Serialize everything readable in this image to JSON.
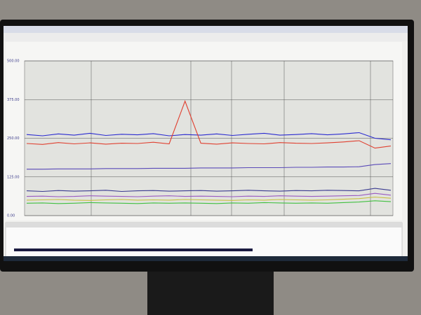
{
  "chart_data": {
    "type": "line",
    "categories": [
      null,
      null,
      null,
      null,
      null,
      null,
      null,
      null,
      null,
      null,
      null,
      null,
      null,
      null,
      null,
      null,
      null,
      null,
      null,
      null,
      null,
      null,
      null,
      null
    ],
    "series": [
      {
        "color": "#2a2ad0",
        "values": [
          262,
          258,
          264,
          260,
          266,
          259,
          263,
          261,
          265,
          258,
          262,
          260,
          264,
          259,
          263,
          266,
          260,
          262,
          265,
          261,
          264,
          268,
          250,
          245
        ]
      },
      {
        "color": "#e04030",
        "values": [
          233,
          230,
          236,
          232,
          235,
          231,
          234,
          233,
          237,
          232,
          370,
          234,
          231,
          235,
          233,
          232,
          236,
          234,
          233,
          235,
          238,
          242,
          218,
          225
        ]
      },
      {
        "color": "#5a4ab8",
        "values": [
          150,
          150,
          151,
          151,
          151,
          152,
          152,
          152,
          153,
          153,
          153,
          154,
          154,
          154,
          155,
          155,
          155,
          156,
          156,
          157,
          157,
          158,
          165,
          168
        ]
      },
      {
        "color": "#3a3a90",
        "values": [
          80,
          78,
          81,
          79,
          80,
          82,
          78,
          80,
          81,
          79,
          80,
          81,
          79,
          80,
          82,
          80,
          79,
          81,
          80,
          82,
          81,
          80,
          88,
          82
        ]
      },
      {
        "color": "#9a5ac0",
        "values": [
          62,
          63,
          61,
          62,
          64,
          63,
          62,
          61,
          63,
          64,
          62,
          63,
          62,
          61,
          63,
          62,
          64,
          63,
          62,
          63,
          64,
          65,
          72,
          66
        ]
      },
      {
        "color": "#c8c040",
        "values": [
          50,
          51,
          52,
          50,
          49,
          51,
          52,
          50,
          51,
          50,
          52,
          51,
          50,
          49,
          51,
          50,
          52,
          51,
          50,
          51,
          53,
          55,
          60,
          56
        ]
      },
      {
        "color": "#40c040",
        "values": [
          40,
          41,
          39,
          40,
          42,
          41,
          40,
          39,
          41,
          40,
          41,
          40,
          39,
          41,
          40,
          42,
          41,
          40,
          41,
          40,
          42,
          44,
          48,
          45
        ]
      }
    ],
    "ylim": [
      0,
      500
    ],
    "yticks": [
      {
        "value": 0,
        "label": "0.00"
      },
      {
        "value": 125,
        "label": "125.00"
      },
      {
        "value": 250,
        "label": "250.00"
      },
      {
        "value": 375,
        "label": "375.00"
      },
      {
        "value": 500,
        "label": "500.00"
      }
    ],
    "grid": true
  }
}
